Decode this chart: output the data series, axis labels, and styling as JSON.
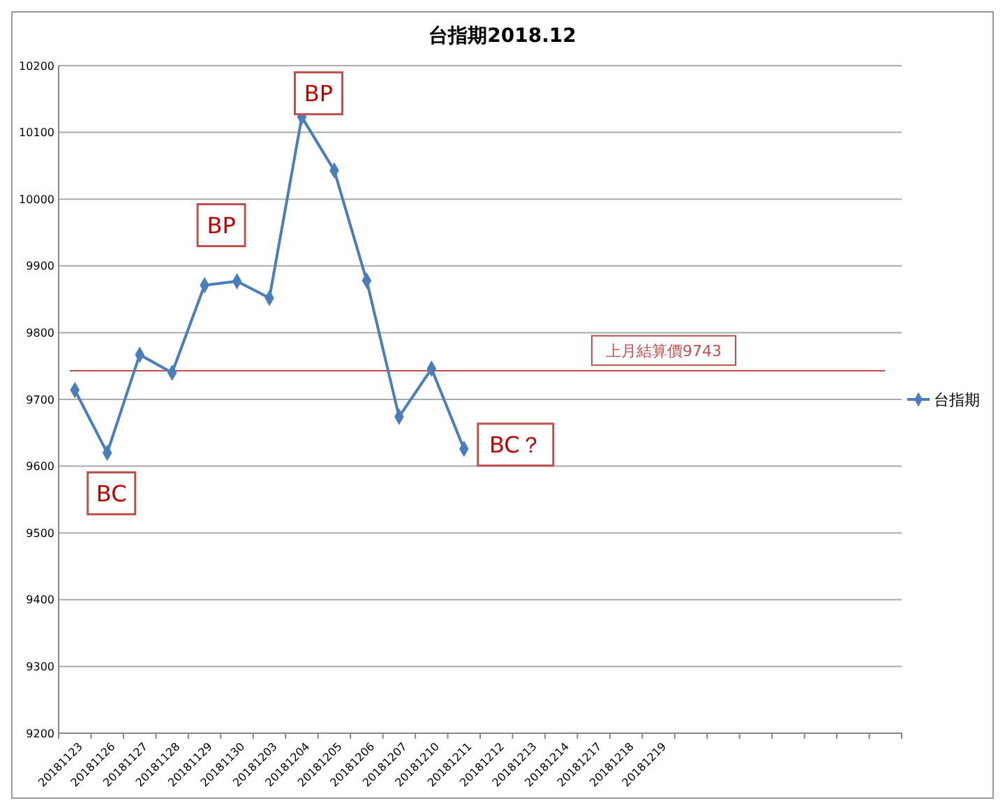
{
  "chart_data": {
    "type": "line",
    "title": "台指期2018.12",
    "categories": [
      "20181123",
      "20181126",
      "20181127",
      "20181128",
      "20181129",
      "20181130",
      "20181203",
      "20181204",
      "20181205",
      "20181206",
      "20181207",
      "20181210",
      "20181211",
      "20181212",
      "20181213",
      "20181214",
      "20181217",
      "20181218",
      "20181219",
      null,
      null,
      null,
      null,
      null,
      null,
      null
    ],
    "series": [
      {
        "name": "台指期",
        "color": "#4a7ebb",
        "values": [
          9714,
          9620,
          9767,
          9740,
          9871,
          9877,
          9852,
          10123,
          10043,
          9878,
          9674,
          9746,
          9626,
          null,
          null,
          null,
          null,
          null,
          null,
          null,
          null,
          null,
          null,
          null,
          null,
          null
        ]
      }
    ],
    "ylim": [
      9200,
      10200
    ],
    "yticks": [
      9200,
      9300,
      9400,
      9500,
      9600,
      9700,
      9800,
      9900,
      10000,
      10100,
      10200
    ],
    "grid": "y",
    "legend": "right",
    "marker": "diamond",
    "line_style": "solid",
    "ref_lines": [
      {
        "axis": "y",
        "value": 9743,
        "label": "上月結算價9743",
        "color": "#c0504d"
      }
    ],
    "annotations": [
      {
        "text": "BC",
        "x": "20181126",
        "y": 9620
      },
      {
        "text": "BP",
        "x": "20181129",
        "y": 9871
      },
      {
        "text": "BP",
        "x": "20181204",
        "y": 10123
      },
      {
        "text": "BC？",
        "x": "20181211",
        "y": 9626
      }
    ]
  }
}
